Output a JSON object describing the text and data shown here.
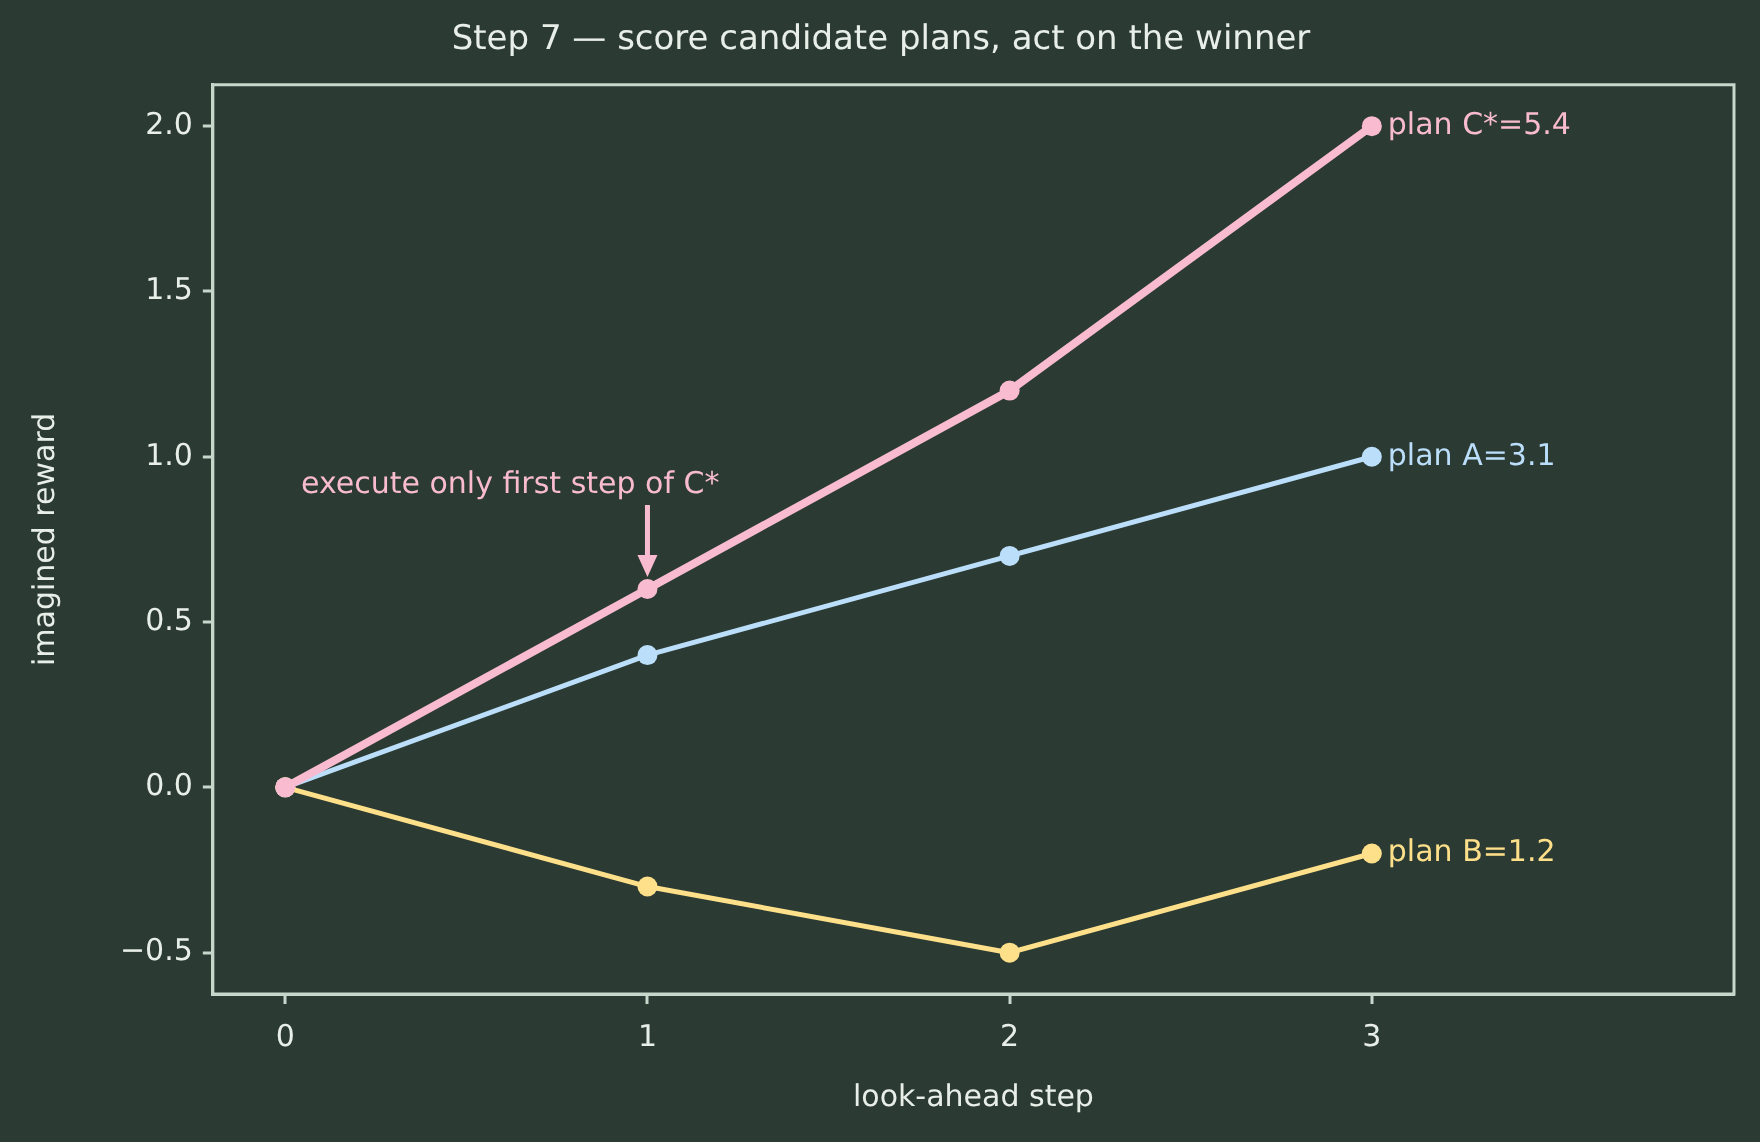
{
  "chart_data": {
    "type": "line",
    "title": "Step 7 — score candidate plans, act on the winner",
    "xlabel": "look-ahead step",
    "ylabel": "imagined reward",
    "x": [
      0,
      1,
      2,
      3
    ],
    "series": [
      {
        "name": "plan A=3.1",
        "color": "#bbdefb",
        "values": [
          0,
          0.4,
          0.7,
          1.0
        ]
      },
      {
        "name": "plan B=1.2",
        "color": "#ffe08a",
        "values": [
          0,
          -0.3,
          -0.5,
          -0.2
        ]
      },
      {
        "name": "plan C*=5.4",
        "color": "#f8bbd0",
        "values": [
          0,
          0.6,
          1.2,
          2.0
        ]
      }
    ],
    "xlim": [
      -0.2,
      4
    ],
    "xticks": [
      0,
      1,
      2,
      3
    ],
    "ylim": [
      -0.625,
      2.125
    ],
    "yticks": [
      {
        "value": -0.5,
        "label": "−0.5"
      },
      {
        "value": 0,
        "label": "0.0"
      },
      {
        "value": 0.5,
        "label": "0.5"
      },
      {
        "value": 1,
        "label": "1.0"
      },
      {
        "value": 1.5,
        "label": "1.5"
      },
      {
        "value": 2,
        "label": "2.0"
      }
    ],
    "annotations": [
      {
        "text": "execute only first step of C*",
        "x": 1,
        "y": 0.6
      }
    ],
    "grid": false,
    "legend": false,
    "marker": "circle",
    "line_style": "solid"
  }
}
